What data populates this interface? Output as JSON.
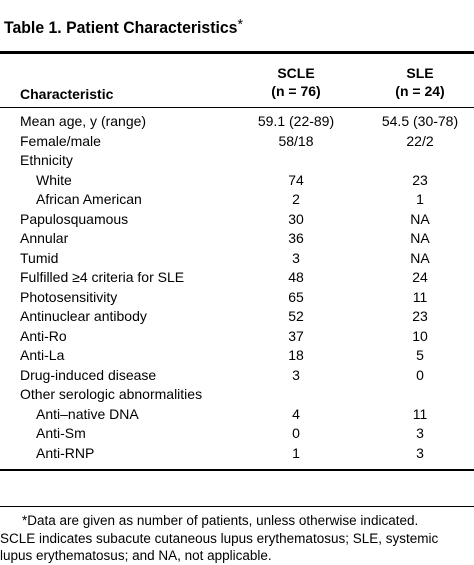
{
  "table": {
    "title": "Table 1. Patient Characteristics",
    "title_mark": "*",
    "header": {
      "characteristic": "Characteristic",
      "scle_line1": "SCLE",
      "scle_line2": "(n = 76)",
      "sle_line1": "SLE",
      "sle_line2": "(n = 24)"
    },
    "rows": [
      {
        "label": "Mean age, y (range)",
        "scle": "59.1 (22-89)",
        "sle": "54.5 (30-78)",
        "indent": false
      },
      {
        "label": "Female/male",
        "scle": "58/18",
        "sle": "22/2",
        "indent": false
      },
      {
        "label": "Ethnicity",
        "scle": "",
        "sle": "",
        "indent": false
      },
      {
        "label": "White",
        "scle": "74",
        "sle": "23",
        "indent": true
      },
      {
        "label": "African American",
        "scle": "2",
        "sle": "1",
        "indent": true
      },
      {
        "label": "Papulosquamous",
        "scle": "30",
        "sle": "NA",
        "indent": false
      },
      {
        "label": "Annular",
        "scle": "36",
        "sle": "NA",
        "indent": false
      },
      {
        "label": "Tumid",
        "scle": "3",
        "sle": "NA",
        "indent": false
      },
      {
        "label": "Fulfilled ≥4 criteria for SLE",
        "scle": "48",
        "sle": "24",
        "indent": false
      },
      {
        "label": "Photosensitivity",
        "scle": "65",
        "sle": "11",
        "indent": false
      },
      {
        "label": "Antinuclear antibody",
        "scle": "52",
        "sle": "23",
        "indent": false
      },
      {
        "label": "Anti-Ro",
        "scle": "37",
        "sle": "10",
        "indent": false
      },
      {
        "label": "Anti-La",
        "scle": "18",
        "sle": "5",
        "indent": false
      },
      {
        "label": "Drug-induced disease",
        "scle": "3",
        "sle": "0",
        "indent": false
      },
      {
        "label": "Other serologic abnormalities",
        "scle": "",
        "sle": "",
        "indent": false
      },
      {
        "label": "Anti–native DNA",
        "scle": "4",
        "sle": "11",
        "indent": true
      },
      {
        "label": "Anti-Sm",
        "scle": "0",
        "sle": "3",
        "indent": true
      },
      {
        "label": "Anti-RNP",
        "scle": "1",
        "sle": "3",
        "indent": true
      }
    ],
    "footnote": [
      "*Data are given as number of patients, unless otherwise indicated.",
      "SCLE indicates subacute cutaneous lupus erythematosus; SLE, systemic",
      "lupus erythematosus; and NA, not applicable."
    ]
  }
}
